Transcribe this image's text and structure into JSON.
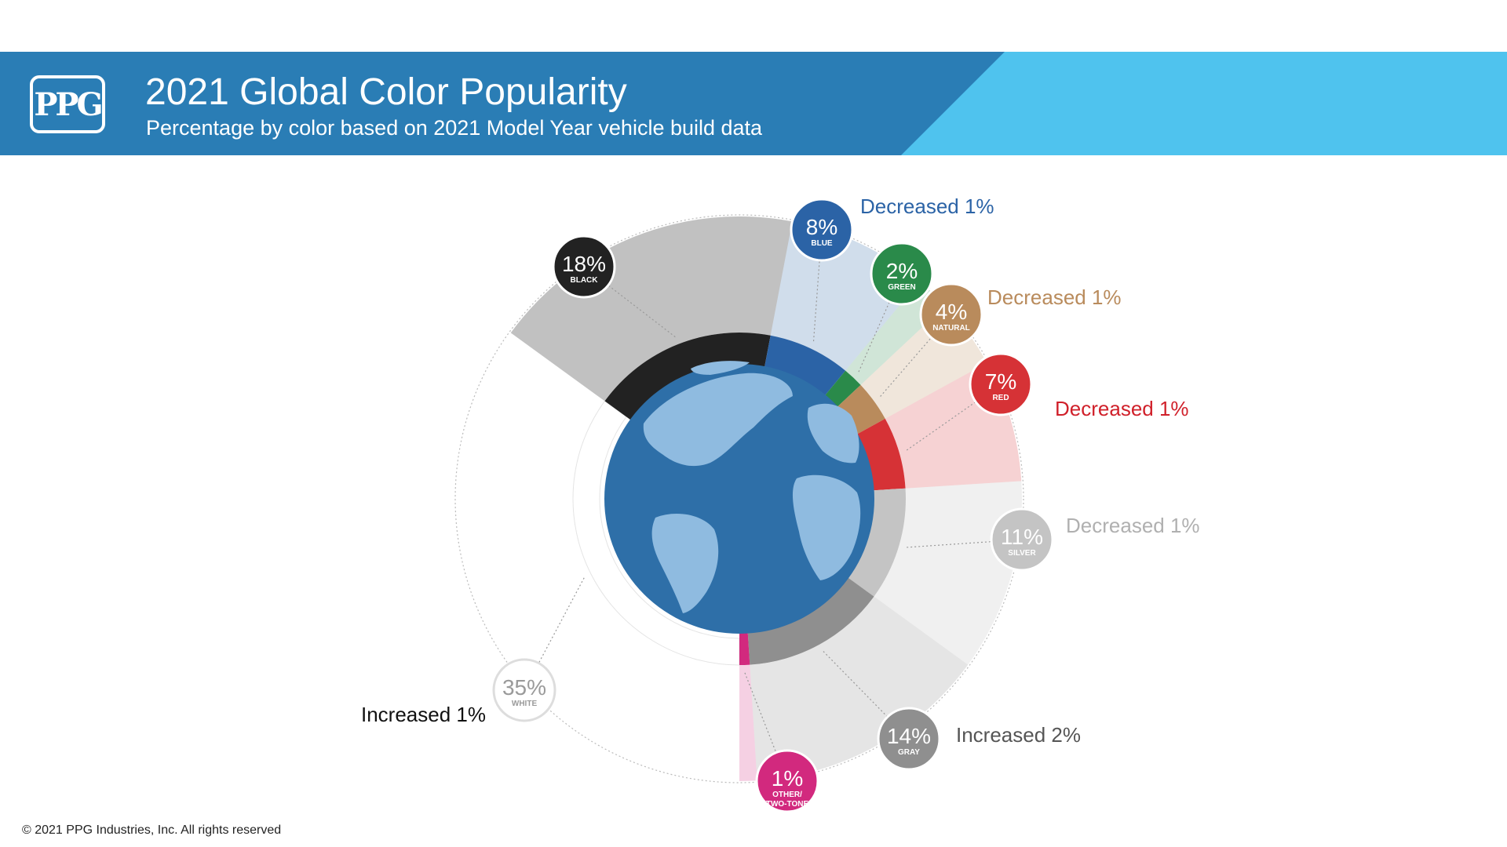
{
  "header": {
    "logo_text": "PPG",
    "title": "2021 Global Color Popularity",
    "subtitle": "Percentage by color based on 2021 Model Year vehicle build data"
  },
  "colors": {
    "header_dark": "#2a7db5",
    "header_light": "#4fc3ee",
    "globe_ocean": "#2e6fa8",
    "globe_land": "#8fbbe0"
  },
  "chart_data": {
    "type": "pie",
    "title": "2021 Global Color Popularity",
    "unit": "%",
    "slices": [
      {
        "name": "WHITE",
        "value": 35,
        "label": "35%",
        "change": "Increased 1%",
        "color": "#ffffff",
        "ring_color": "#e6e6e6",
        "label_color": "#111111"
      },
      {
        "name": "BLACK",
        "value": 18,
        "label": "18%",
        "change": "",
        "color": "#222222",
        "ring_color": "#222222",
        "label_color": "#111111"
      },
      {
        "name": "BLUE",
        "value": 8,
        "label": "8%",
        "change": "Decreased 1%",
        "color": "#2b63a6",
        "ring_color": "#2b63a6",
        "label_color": "#2b63a6"
      },
      {
        "name": "GREEN",
        "value": 2,
        "label": "2%",
        "change": "",
        "color": "#2a8a4a",
        "ring_color": "#2a8a4a",
        "label_color": "#2a8a4a"
      },
      {
        "name": "NATURAL",
        "value": 4,
        "label": "4%",
        "change": "Decreased 1%",
        "color": "#b98b5c",
        "ring_color": "#b98b5c",
        "label_color": "#b98b5c"
      },
      {
        "name": "RED",
        "value": 7,
        "label": "7%",
        "change": "Decreased 1%",
        "color": "#d63236",
        "ring_color": "#d63236",
        "label_color": "#d0202a"
      },
      {
        "name": "SILVER",
        "value": 11,
        "label": "11%",
        "change": "Decreased 1%",
        "color": "#bcbcbc",
        "ring_color": "#c4c4c4",
        "label_color": "#b0b0b0"
      },
      {
        "name": "GRAY",
        "value": 14,
        "label": "14%",
        "change": "Increased 2%",
        "color": "#8a8a8a",
        "ring_color": "#8f8f8f",
        "label_color": "#555555"
      },
      {
        "name": "OTHER/ TWO-TONE",
        "value": 1,
        "label": "1%",
        "change": "",
        "color": "#d2297e",
        "ring_color": "#d2297e",
        "label_color": "#d2297e"
      }
    ]
  },
  "footer": {
    "copyright": "© 2021 PPG Industries, Inc. All rights reserved"
  }
}
